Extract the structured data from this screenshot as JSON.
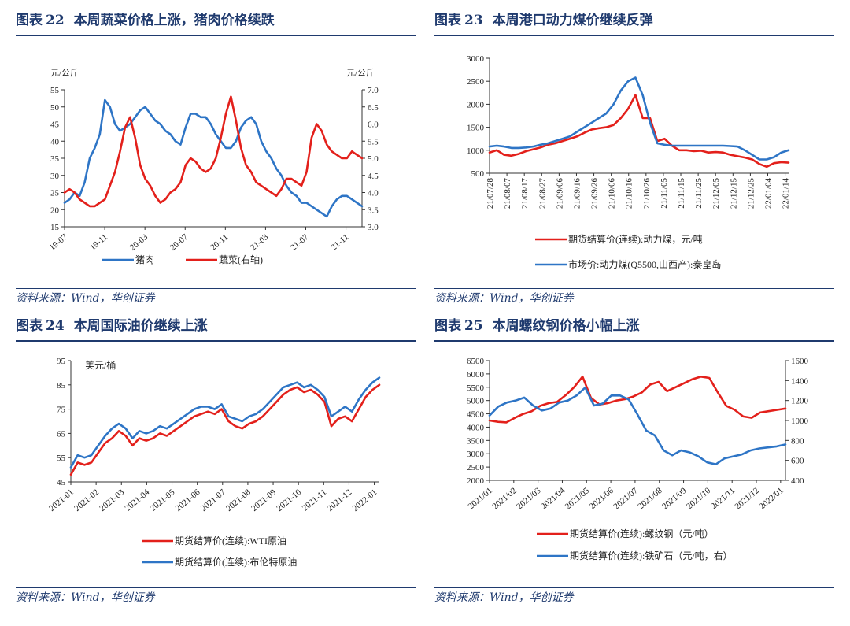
{
  "source_label": "资料来源：Wind，华创证券",
  "chart_data": [
    {
      "id": "c22",
      "figure_prefix": "图表",
      "figure_no": "22",
      "title": "本周蔬菜价格上涨，猪肉价格续跌",
      "type": "line",
      "left_unit": "元/公斤",
      "right_unit": "元/公斤",
      "ylim_left": [
        15,
        55
      ],
      "yticks_left": [
        "15",
        "20",
        "25",
        "30",
        "35",
        "40",
        "45",
        "50",
        "55"
      ],
      "ylim_right": [
        3.0,
        7.0
      ],
      "yticks_right": [
        "3.0",
        "3.5",
        "4.0",
        "4.5",
        "5.0",
        "5.5",
        "6.0",
        "6.5",
        "7.0"
      ],
      "x_labels": [
        "19-07",
        "19-11",
        "20-03",
        "20-07",
        "20-11",
        "21-03",
        "21-07",
        "21-11"
      ],
      "series": [
        {
          "name": "猪肉",
          "color": "#2e75c6",
          "axis": "left",
          "values": [
            22,
            23,
            25,
            24,
            28,
            35,
            38,
            42,
            52,
            50,
            45,
            43,
            44,
            45,
            47,
            49,
            50,
            48,
            46,
            45,
            43,
            42,
            40,
            39,
            44,
            48,
            48,
            47,
            47,
            45,
            42,
            40,
            38,
            38,
            40,
            44,
            46,
            47,
            45,
            40,
            37,
            35,
            32,
            30,
            27,
            25,
            24,
            22,
            22,
            21,
            20,
            19,
            18,
            21,
            23,
            24,
            24,
            23,
            22,
            21
          ]
        },
        {
          "name": "蔬菜(右轴)",
          "color": "#e3201b",
          "axis": "right",
          "values": [
            4.0,
            4.1,
            4.0,
            3.8,
            3.7,
            3.6,
            3.6,
            3.7,
            3.8,
            4.2,
            4.6,
            5.2,
            5.9,
            6.2,
            5.6,
            4.8,
            4.4,
            4.2,
            3.9,
            3.7,
            3.8,
            4.0,
            4.1,
            4.3,
            4.8,
            5.0,
            4.9,
            4.7,
            4.6,
            4.7,
            5.0,
            5.6,
            6.3,
            6.8,
            6.1,
            5.3,
            4.8,
            4.6,
            4.3,
            4.2,
            4.1,
            4.0,
            3.9,
            4.1,
            4.4,
            4.4,
            4.3,
            4.2,
            4.6,
            5.6,
            6.0,
            5.8,
            5.4,
            5.2,
            5.1,
            5.0,
            5.0,
            5.2,
            5.1,
            5.0
          ]
        }
      ],
      "legend": [
        "猪肉",
        "蔬菜(右轴)"
      ]
    },
    {
      "id": "c23",
      "figure_prefix": "图表",
      "figure_no": "23",
      "title": "本周港口动力煤价继续反弹",
      "type": "line",
      "ylim_left": [
        500,
        3000
      ],
      "yticks_left": [
        "500",
        "1000",
        "1500",
        "2000",
        "2500",
        "3000"
      ],
      "x_labels": [
        "21/07/28",
        "21/08/07",
        "21/08/17",
        "21/08/27",
        "21/09/06",
        "21/09/16",
        "21/09/26",
        "21/10/06",
        "21/10/16",
        "21/10/26",
        "21/11/05",
        "21/11/15",
        "21/11/25",
        "21/12/05",
        "21/12/15",
        "21/12/25",
        "22/01/04",
        "22/01/14"
      ],
      "series": [
        {
          "name": "期货结算价(连续):动力煤，元/吨",
          "color": "#e3201b",
          "axis": "left",
          "values": [
            950,
            1000,
            900,
            880,
            920,
            980,
            1020,
            1060,
            1120,
            1150,
            1200,
            1250,
            1300,
            1380,
            1450,
            1480,
            1500,
            1550,
            1700,
            1900,
            2200,
            1700,
            1700,
            1200,
            1250,
            1100,
            1000,
            1000,
            980,
            990,
            950,
            960,
            950,
            900,
            870,
            840,
            800,
            700,
            640,
            720,
            740,
            730
          ]
        },
        {
          "name": "市场价:动力煤(Q5500,山西产):秦皇岛",
          "color": "#2e75c6",
          "axis": "left",
          "values": [
            1080,
            1100,
            1080,
            1050,
            1050,
            1060,
            1080,
            1120,
            1150,
            1200,
            1250,
            1300,
            1400,
            1500,
            1600,
            1700,
            1800,
            2000,
            2300,
            2500,
            2580,
            2200,
            1600,
            1150,
            1120,
            1100,
            1100,
            1100,
            1100,
            1100,
            1100,
            1100,
            1100,
            1090,
            1080,
            1000,
            900,
            800,
            800,
            850,
            950,
            1000
          ]
        }
      ],
      "legend": [
        "期货结算价(连续):动力煤，元/吨",
        "市场价:动力煤(Q5500,山西产):秦皇岛"
      ]
    },
    {
      "id": "c24",
      "figure_prefix": "图表",
      "figure_no": "24",
      "title": "本周国际油价继续上涨",
      "type": "line",
      "left_unit": "美元/桶",
      "ylim_left": [
        45,
        95
      ],
      "yticks_left": [
        "45",
        "55",
        "65",
        "75",
        "85",
        "95"
      ],
      "x_labels": [
        "2021-01",
        "2021-02",
        "2021-03",
        "2021-04",
        "2021-05",
        "2021-06",
        "2021-07",
        "2021-08",
        "2021-09",
        "2021-10",
        "2021-11",
        "2021-12",
        "2022-01"
      ],
      "series": [
        {
          "name": "期货结算价(连续):WTI原油",
          "color": "#e3201b",
          "axis": "left",
          "values": [
            48,
            53,
            52,
            53,
            57,
            61,
            63,
            66,
            64,
            60,
            63,
            62,
            63,
            65,
            64,
            66,
            68,
            70,
            72,
            73,
            74,
            73,
            75,
            70,
            68,
            67,
            69,
            70,
            72,
            75,
            78,
            81,
            83,
            84,
            82,
            83,
            81,
            78,
            68,
            71,
            72,
            70,
            75,
            80,
            83,
            85
          ]
        },
        {
          "name": "期货结算价(连续):布伦特原油",
          "color": "#2e75c6",
          "axis": "left",
          "values": [
            51,
            56,
            55,
            56,
            60,
            64,
            67,
            69,
            67,
            63,
            66,
            65,
            66,
            68,
            67,
            69,
            71,
            73,
            75,
            76,
            76,
            75,
            77,
            72,
            71,
            70,
            72,
            73,
            75,
            78,
            81,
            84,
            85,
            86,
            84,
            85,
            83,
            80,
            72,
            74,
            76,
            74,
            79,
            83,
            86,
            88
          ]
        }
      ],
      "legend": [
        "期货结算价(连续):WTI原油",
        "期货结算价(连续):布伦特原油"
      ]
    },
    {
      "id": "c25",
      "figure_prefix": "图表",
      "figure_no": "25",
      "title": "本周螺纹钢价格小幅上涨",
      "type": "line",
      "ylim_left": [
        2000,
        6500
      ],
      "yticks_left": [
        "2000",
        "2500",
        "3000",
        "3500",
        "4000",
        "4500",
        "5000",
        "5500",
        "6000",
        "6500"
      ],
      "ylim_right": [
        400,
        1600
      ],
      "yticks_right": [
        "400",
        "600",
        "800",
        "1000",
        "1200",
        "1400",
        "1600"
      ],
      "x_labels": [
        "2021/01",
        "2021/02",
        "2021/03",
        "2021/04",
        "2021/05",
        "2021/06",
        "2021/07",
        "2021/08",
        "2021/09",
        "2021/10",
        "2021/11",
        "2021/12",
        "2022/01"
      ],
      "series": [
        {
          "name": "期货结算价(连续):螺纹钢（元/吨）",
          "color": "#e3201b",
          "axis": "left",
          "values": [
            4250,
            4200,
            4180,
            4350,
            4500,
            4600,
            4800,
            4900,
            4950,
            5200,
            5500,
            5900,
            5100,
            4850,
            4900,
            5000,
            5050,
            5150,
            5300,
            5600,
            5700,
            5350,
            5500,
            5650,
            5800,
            5900,
            5850,
            5300,
            4800,
            4650,
            4400,
            4350,
            4550,
            4600,
            4650,
            4700
          ]
        },
        {
          "name": "期货结算价(连续):铁矿石（元/吨，右）",
          "color": "#2e75c6",
          "axis": "left_right",
          "values": [
            1050,
            1140,
            1180,
            1200,
            1230,
            1150,
            1100,
            1120,
            1180,
            1200,
            1250,
            1330,
            1150,
            1170,
            1250,
            1250,
            1210,
            1060,
            900,
            850,
            700,
            650,
            700,
            680,
            640,
            580,
            560,
            620,
            640,
            660,
            700,
            720,
            730,
            740,
            760
          ]
        }
      ],
      "legend": [
        "期货结算价(连续):螺纹钢（元/吨）",
        "期货结算价(连续):铁矿石（元/吨，右）"
      ]
    }
  ]
}
